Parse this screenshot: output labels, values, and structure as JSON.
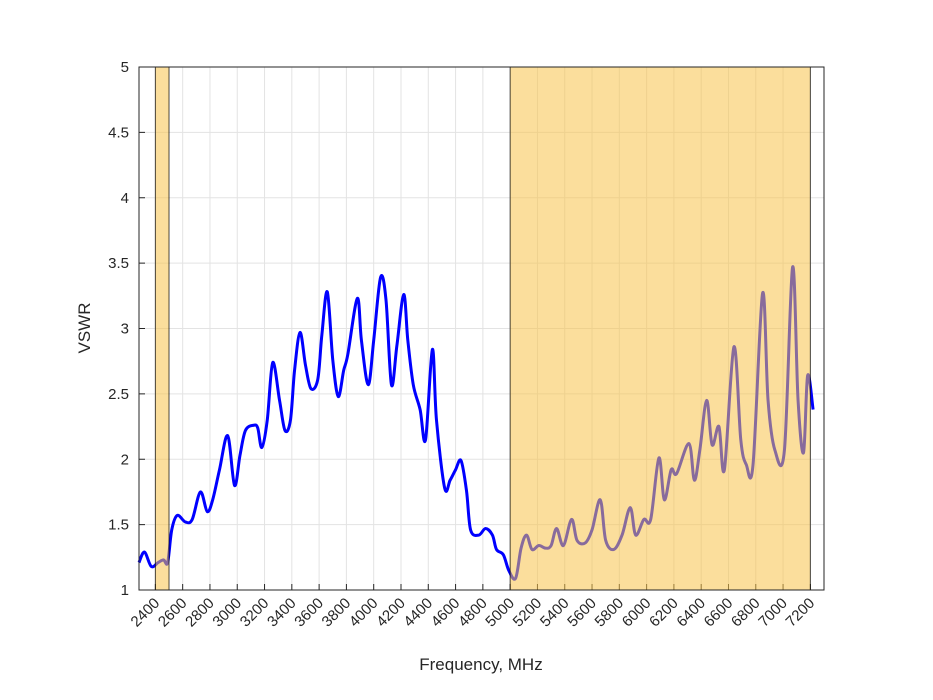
{
  "chart_data": {
    "type": "line",
    "x_label": "Frequency, MHz",
    "y_label": "VSWR",
    "xlim": [
      2280,
      7300
    ],
    "ylim": [
      1,
      5
    ],
    "xticks": [
      2400,
      2600,
      2800,
      3000,
      3200,
      3400,
      3600,
      3800,
      4000,
      4200,
      4400,
      4600,
      4800,
      5000,
      5200,
      5400,
      5600,
      5800,
      6000,
      6200,
      6400,
      6600,
      6800,
      7000,
      7200
    ],
    "yticks": [
      1,
      1.5,
      2,
      2.5,
      3,
      3.5,
      4,
      4.5,
      5
    ],
    "grid": true,
    "shaded_bands": {
      "color": "#f7c24a",
      "ranges": [
        [
          2400,
          2500
        ],
        [
          5000,
          7200
        ]
      ]
    },
    "series": [
      {
        "color": "#0000ff",
        "x": [
          2280,
          2320,
          2370,
          2420,
          2460,
          2490,
          2520,
          2560,
          2620,
          2670,
          2730,
          2780,
          2820,
          2870,
          2930,
          2980,
          3020,
          3060,
          3120,
          3150,
          3180,
          3220,
          3260,
          3310,
          3350,
          3390,
          3420,
          3460,
          3500,
          3540,
          3590,
          3620,
          3660,
          3700,
          3740,
          3780,
          3810,
          3880,
          3910,
          3960,
          4000,
          4050,
          4090,
          4130,
          4170,
          4220,
          4250,
          4290,
          4340,
          4380,
          4430,
          4460,
          4520,
          4560,
          4600,
          4640,
          4680,
          4710,
          4770,
          4820,
          4870,
          4900,
          4950,
          4990,
          5040,
          5080,
          5120,
          5160,
          5210,
          5260,
          5300,
          5340,
          5390,
          5450,
          5490,
          5550,
          5600,
          5660,
          5700,
          5760,
          5820,
          5880,
          5920,
          5980,
          6030,
          6090,
          6130,
          6180,
          6220,
          6310,
          6350,
          6390,
          6440,
          6480,
          6530,
          6570,
          6640,
          6690,
          6730,
          6780,
          6850,
          6890,
          6940,
          7010,
          7070,
          7110,
          7150,
          7180,
          7220
        ],
        "values": [
          1.21,
          1.29,
          1.18,
          1.21,
          1.23,
          1.21,
          1.46,
          1.57,
          1.52,
          1.54,
          1.75,
          1.6,
          1.69,
          1.92,
          2.18,
          1.8,
          2.03,
          2.22,
          2.26,
          2.24,
          2.09,
          2.3,
          2.74,
          2.45,
          2.22,
          2.3,
          2.68,
          2.97,
          2.72,
          2.54,
          2.61,
          2.95,
          3.28,
          2.76,
          2.48,
          2.68,
          2.8,
          3.23,
          2.91,
          2.57,
          2.91,
          3.39,
          3.22,
          2.57,
          2.87,
          3.26,
          2.91,
          2.57,
          2.38,
          2.15,
          2.84,
          2.3,
          1.78,
          1.84,
          1.92,
          1.99,
          1.76,
          1.46,
          1.42,
          1.47,
          1.42,
          1.31,
          1.27,
          1.15,
          1.09,
          1.32,
          1.42,
          1.31,
          1.34,
          1.32,
          1.34,
          1.47,
          1.34,
          1.54,
          1.38,
          1.36,
          1.46,
          1.69,
          1.38,
          1.31,
          1.42,
          1.63,
          1.42,
          1.54,
          1.54,
          2.01,
          1.69,
          1.92,
          1.89,
          2.12,
          1.84,
          2.07,
          2.45,
          2.11,
          2.25,
          1.92,
          2.86,
          2.15,
          1.96,
          1.96,
          3.27,
          2.45,
          2.07,
          2.07,
          3.47,
          2.45,
          2.05,
          2.64,
          2.38
        ]
      }
    ]
  }
}
